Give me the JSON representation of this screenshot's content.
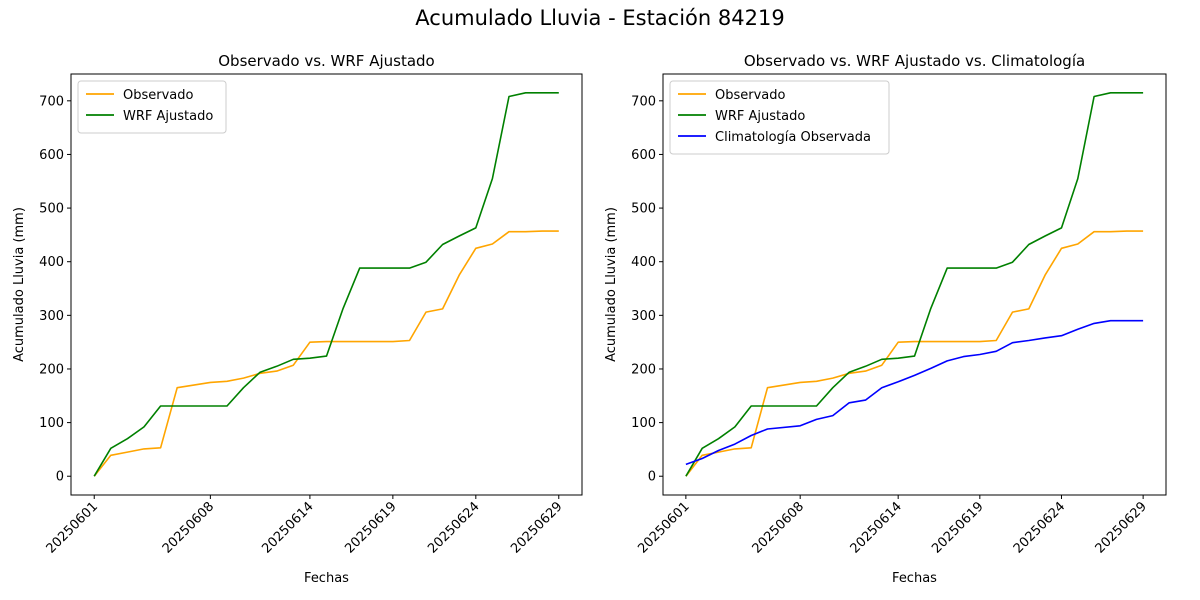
{
  "figure": {
    "title": "Acumulado Lluvia - Estación 84219"
  },
  "colors": {
    "observado": "#ffa500",
    "wrf": "#008000",
    "climatologia": "#0000ff",
    "axis": "#000000"
  },
  "chart_data": [
    {
      "type": "line",
      "title": "Observado vs. WRF Ajustado",
      "xlabel": "Fechas",
      "ylabel": "Acumulado Lluvia (mm)",
      "xlim": [
        0,
        29
      ],
      "ylim": [
        -35,
        750
      ],
      "yticks": [
        0,
        100,
        200,
        300,
        400,
        500,
        600,
        700
      ],
      "xtick_positions": [
        1,
        8,
        14,
        19,
        24,
        29
      ],
      "xticks": [
        "20250601",
        "20250608",
        "20250614",
        "20250619",
        "20250624",
        "20250629"
      ],
      "x": [
        "20250601",
        "20250602",
        "20250603",
        "20250604",
        "20250605",
        "20250606",
        "20250608",
        "20250609",
        "20250610",
        "20250611",
        "20250612",
        "20250613",
        "20250614",
        "20250615",
        "20250616",
        "20250617",
        "20250618",
        "20250619",
        "20250620",
        "20250621",
        "20250622",
        "20250623",
        "20250624",
        "20250625",
        "20250626",
        "20250627",
        "20250628",
        "20250629"
      ],
      "legend_position": "upper-left",
      "series": [
        {
          "name": "Observado",
          "color": "#ffa500",
          "values": [
            0,
            39,
            45,
            51,
            53,
            165,
            175,
            177,
            183,
            192,
            196,
            207,
            250,
            251,
            251,
            251,
            251,
            251,
            253,
            306,
            312,
            375,
            425,
            433,
            456,
            456,
            457,
            457
          ]
        },
        {
          "name": "WRF Ajustado",
          "color": "#008000",
          "values": [
            0,
            52,
            70,
            92,
            131,
            131,
            131,
            131,
            165,
            194,
            205,
            218,
            220,
            224,
            313,
            388,
            388,
            388,
            388,
            399,
            432,
            448,
            463,
            555,
            708,
            715,
            715,
            715
          ]
        }
      ]
    },
    {
      "type": "line",
      "title": "Observado vs. WRF Ajustado vs. Climatología",
      "xlabel": "Fechas",
      "ylabel": "Acumulado Lluvia (mm)",
      "xlim": [
        0,
        29
      ],
      "ylim": [
        -35,
        750
      ],
      "yticks": [
        0,
        100,
        200,
        300,
        400,
        500,
        600,
        700
      ],
      "xtick_positions": [
        1,
        8,
        14,
        19,
        24,
        29
      ],
      "xticks": [
        "20250601",
        "20250608",
        "20250614",
        "20250619",
        "20250624",
        "20250629"
      ],
      "x": [
        "20250601",
        "20250602",
        "20250603",
        "20250604",
        "20250605",
        "20250606",
        "20250608",
        "20250609",
        "20250610",
        "20250611",
        "20250612",
        "20250613",
        "20250614",
        "20250615",
        "20250616",
        "20250617",
        "20250618",
        "20250619",
        "20250620",
        "20250621",
        "20250622",
        "20250623",
        "20250624",
        "20250625",
        "20250626",
        "20250627",
        "20250628",
        "20250629"
      ],
      "legend_position": "upper-left",
      "series": [
        {
          "name": "Observado",
          "color": "#ffa500",
          "values": [
            0,
            39,
            45,
            51,
            53,
            165,
            175,
            177,
            183,
            192,
            196,
            207,
            250,
            251,
            251,
            251,
            251,
            251,
            253,
            306,
            312,
            375,
            425,
            433,
            456,
            456,
            457,
            457
          ]
        },
        {
          "name": "WRF Ajustado",
          "color": "#008000",
          "values": [
            0,
            52,
            70,
            92,
            131,
            131,
            131,
            131,
            165,
            194,
            205,
            218,
            220,
            224,
            313,
            388,
            388,
            388,
            388,
            399,
            432,
            448,
            463,
            555,
            708,
            715,
            715,
            715
          ]
        },
        {
          "name": "Climatología Observada",
          "color": "#0000ff",
          "values": [
            22,
            33,
            48,
            60,
            76,
            88,
            94,
            106,
            113,
            137,
            142,
            165,
            176,
            188,
            201,
            215,
            223,
            227,
            233,
            249,
            253,
            258,
            262,
            274,
            285,
            290,
            290,
            290
          ]
        }
      ]
    }
  ]
}
